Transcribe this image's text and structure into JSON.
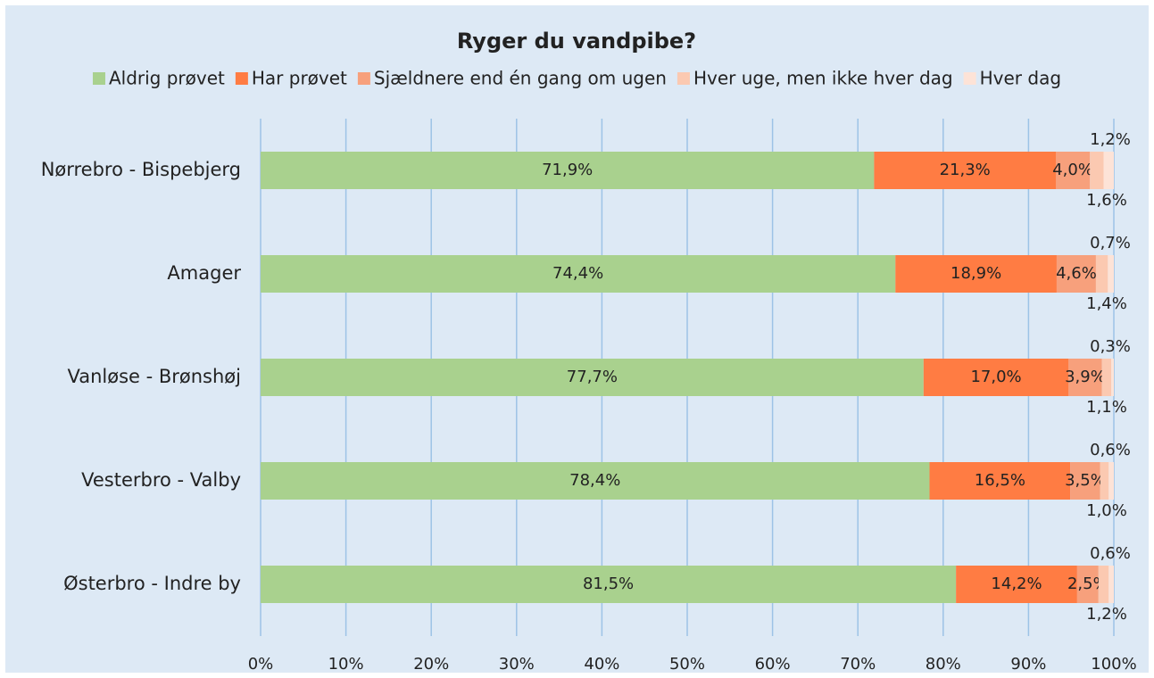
{
  "chart_data": {
    "type": "stacked-barh",
    "title": "Ryger du vandpibe?",
    "categories": [
      "Nørrebro - Bispebjerg",
      "Amager",
      "Vanløse - Brønshøj",
      "Vesterbro - Valby",
      "Østerbro - Indre by"
    ],
    "series": [
      {
        "name": "Aldrig prøvet",
        "color": "#a9d18e",
        "values": [
          71.9,
          74.4,
          77.7,
          78.4,
          81.5
        ],
        "value_labels": [
          "71,9%",
          "74,4%",
          "77,7%",
          "78,4%",
          "81,5%"
        ]
      },
      {
        "name": "Har prøvet",
        "color": "#ff7c43",
        "values": [
          21.3,
          18.9,
          17.0,
          16.5,
          14.2
        ],
        "value_labels": [
          "21,3%",
          "18,9%",
          "17,0%",
          "16,5%",
          "14,2%"
        ]
      },
      {
        "name": "Sjældnere end én gang om ugen",
        "color": "#f7a07c",
        "values": [
          4.0,
          4.6,
          3.9,
          3.5,
          2.5
        ],
        "value_labels": [
          "4,0%",
          "4,6%",
          "3,9%",
          "3,5%",
          "2,5%"
        ]
      },
      {
        "name": "Hver uge, men ikke hver dag",
        "color": "#fbc9b1",
        "values": [
          1.6,
          1.4,
          1.1,
          1.0,
          1.2
        ],
        "value_labels": [
          "1,6%",
          "1,4%",
          "1,1%",
          "1,0%",
          "1,2%"
        ]
      },
      {
        "name": "Hver dag",
        "color": "#fde3d7",
        "values": [
          1.2,
          0.7,
          0.3,
          0.6,
          0.6
        ],
        "value_labels": [
          "1,2%",
          "0,7%",
          "0,3%",
          "0,6%",
          "0,6%"
        ]
      }
    ],
    "xlim": [
      0,
      100
    ],
    "xticks": [
      {
        "value": 0,
        "label": "0%"
      },
      {
        "value": 10,
        "label": "10%"
      },
      {
        "value": 20,
        "label": "20%"
      },
      {
        "value": 30,
        "label": "30%"
      },
      {
        "value": 40,
        "label": "40%"
      },
      {
        "value": 50,
        "label": "50%"
      },
      {
        "value": 60,
        "label": "60%"
      },
      {
        "value": 70,
        "label": "70%"
      },
      {
        "value": 80,
        "label": "80%"
      },
      {
        "value": 90,
        "label": "90%"
      },
      {
        "value": 100,
        "label": "100%"
      }
    ],
    "grid": true,
    "legend": "top"
  }
}
